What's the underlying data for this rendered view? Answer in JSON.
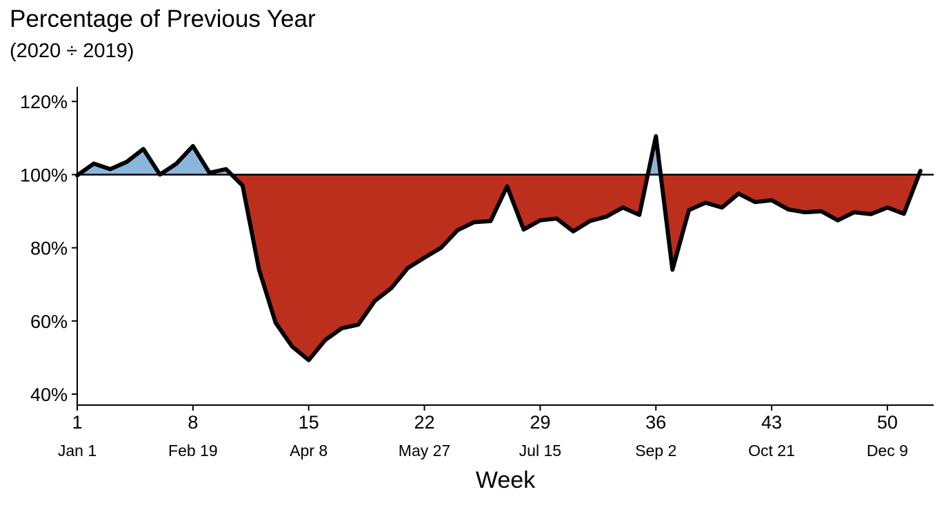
{
  "title": "Percentage of Previous Year",
  "subtitle": "(2020 ÷ 2019)",
  "chart_data": {
    "type": "area",
    "title": "Percentage of Previous Year",
    "subtitle": "(2020 ÷ 2019)",
    "xlabel": "Week",
    "ylabel": "",
    "x": [
      1,
      2,
      3,
      4,
      5,
      6,
      7,
      8,
      9,
      10,
      11,
      12,
      13,
      14,
      15,
      16,
      17,
      18,
      19,
      20,
      21,
      22,
      23,
      24,
      25,
      26,
      27,
      28,
      29,
      30,
      31,
      32,
      33,
      34,
      35,
      36,
      37,
      38,
      39,
      40,
      41,
      42,
      43,
      44,
      45,
      46,
      47,
      48,
      49,
      50,
      51,
      52
    ],
    "values": [
      99.8,
      103,
      101.5,
      103.5,
      107,
      100,
      103,
      107.8,
      100.5,
      101.5,
      97,
      74,
      59.5,
      53,
      49.3,
      54.8,
      58,
      59,
      65.5,
      69,
      74.5,
      77.3,
      80,
      84.8,
      87,
      87.3,
      96.8,
      85,
      87.5,
      88,
      84.5,
      87.3,
      88.5,
      91,
      89,
      110.5,
      74,
      90.3,
      92.3,
      91,
      94.8,
      92.5,
      93,
      90.5,
      89.7,
      90,
      87.5,
      89.7,
      89.2,
      91,
      89.3,
      101
    ],
    "baseline": 100,
    "ylim": [
      37,
      124
    ],
    "xlim": [
      1,
      52.8
    ],
    "yticks": [
      40,
      60,
      80,
      100,
      120
    ],
    "ytick_labels": [
      "40%",
      "60%",
      "80%",
      "100%",
      "120%"
    ],
    "xticks": [
      1,
      8,
      15,
      22,
      29,
      36,
      43,
      50
    ],
    "xtick_labels": [
      "1",
      "8",
      "15",
      "22",
      "29",
      "36",
      "43",
      "50"
    ],
    "xtick_sublabels": [
      "Jan 1",
      "Feb 19",
      "Apr 8",
      "May 27",
      "Jul 15",
      "Sep 2",
      "Oct 21",
      "Dec 9"
    ],
    "above_color": "#8AB6DC",
    "below_color": "#BD2F1D",
    "line_color": "#000000",
    "grid": false
  }
}
